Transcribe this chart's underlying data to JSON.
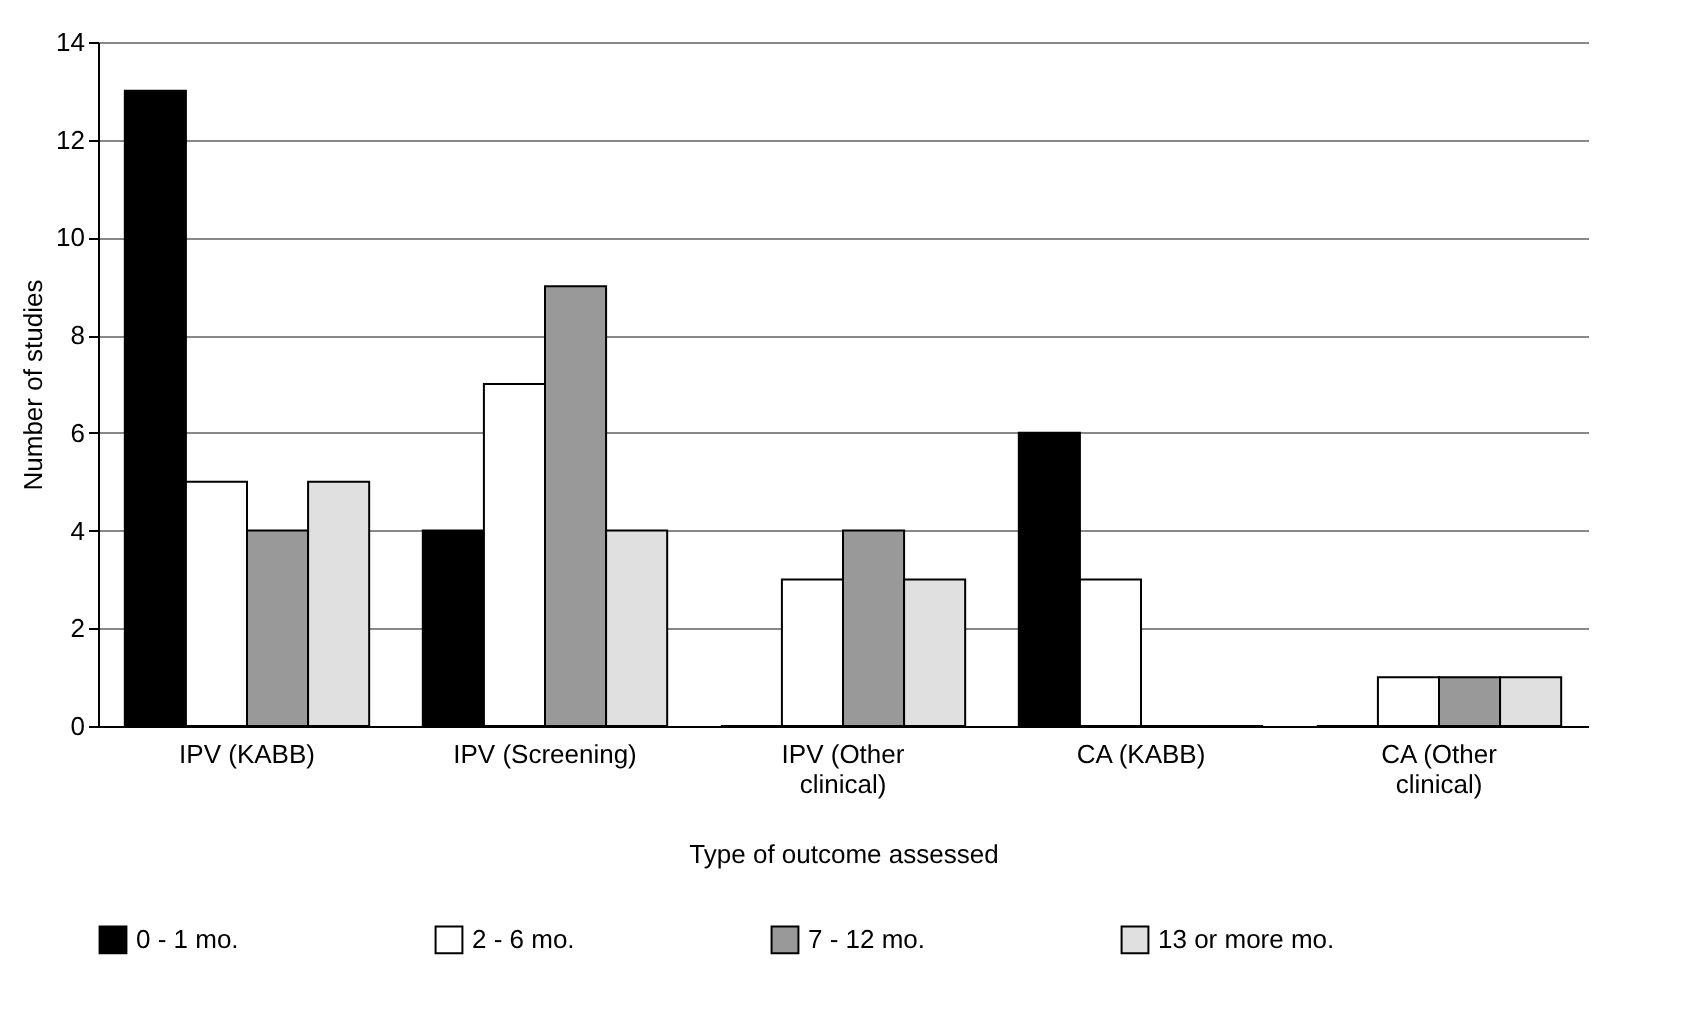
{
  "chart_data": {
    "type": "bar",
    "xlabel": "Type of outcome assessed",
    "ylabel": "Number of studies",
    "categories": [
      "IPV (KABB)",
      "IPV (Screening)",
      "IPV (Other clinical)",
      "CA (KABB)",
      "CA (Other clinical)"
    ],
    "series": [
      {
        "name": "0 - 1 mo.",
        "color": "#000000",
        "values": [
          13,
          4,
          0,
          6,
          0
        ]
      },
      {
        "name": "2 - 6 mo.",
        "color": "#ffffff",
        "values": [
          5,
          7,
          3,
          3,
          1
        ]
      },
      {
        "name": "7 - 12 mo.",
        "color": "#999999",
        "values": [
          4,
          9,
          4,
          0,
          1
        ]
      },
      {
        "name": "13 or more mo.",
        "color": "#e0e0e0",
        "values": [
          5,
          4,
          3,
          0,
          1
        ]
      }
    ],
    "ylim": [
      0,
      14
    ],
    "yticks": [
      0,
      2,
      4,
      6,
      8,
      10,
      12,
      14
    ],
    "grid": "y",
    "legend": "bottom"
  }
}
